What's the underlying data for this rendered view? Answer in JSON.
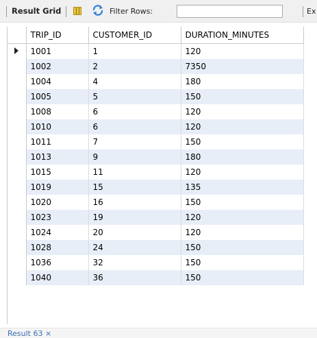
{
  "toolbar": {
    "result_grid_label": "Result Grid",
    "filter_label": "Filter Rows:",
    "filter_value": "",
    "export_label": "Ex"
  },
  "grid": {
    "columns": [
      "TRIP_ID",
      "CUSTOMER_ID",
      "DURATION_MINUTES"
    ],
    "rows": [
      [
        "1001",
        "1",
        "120"
      ],
      [
        "1002",
        "2",
        "7350"
      ],
      [
        "1004",
        "4",
        "180"
      ],
      [
        "1005",
        "5",
        "150"
      ],
      [
        "1008",
        "6",
        "120"
      ],
      [
        "1010",
        "6",
        "120"
      ],
      [
        "1011",
        "7",
        "150"
      ],
      [
        "1013",
        "9",
        "180"
      ],
      [
        "1015",
        "11",
        "120"
      ],
      [
        "1019",
        "15",
        "135"
      ],
      [
        "1020",
        "16",
        "150"
      ],
      [
        "1023",
        "19",
        "120"
      ],
      [
        "1024",
        "20",
        "120"
      ],
      [
        "1028",
        "24",
        "150"
      ],
      [
        "1036",
        "32",
        "150"
      ],
      [
        "1040",
        "36",
        "150"
      ]
    ]
  },
  "bottom_tab": {
    "label": "Result 63 ×"
  },
  "icons": {
    "grid": "grid-layout-icon",
    "refresh": "refresh-icon",
    "row_pointer": "row-pointer-icon"
  },
  "colors": {
    "stripe": "#e8eef8",
    "toolbar_bg": "#f0f0f0",
    "grid_icon": "#e8c437"
  }
}
